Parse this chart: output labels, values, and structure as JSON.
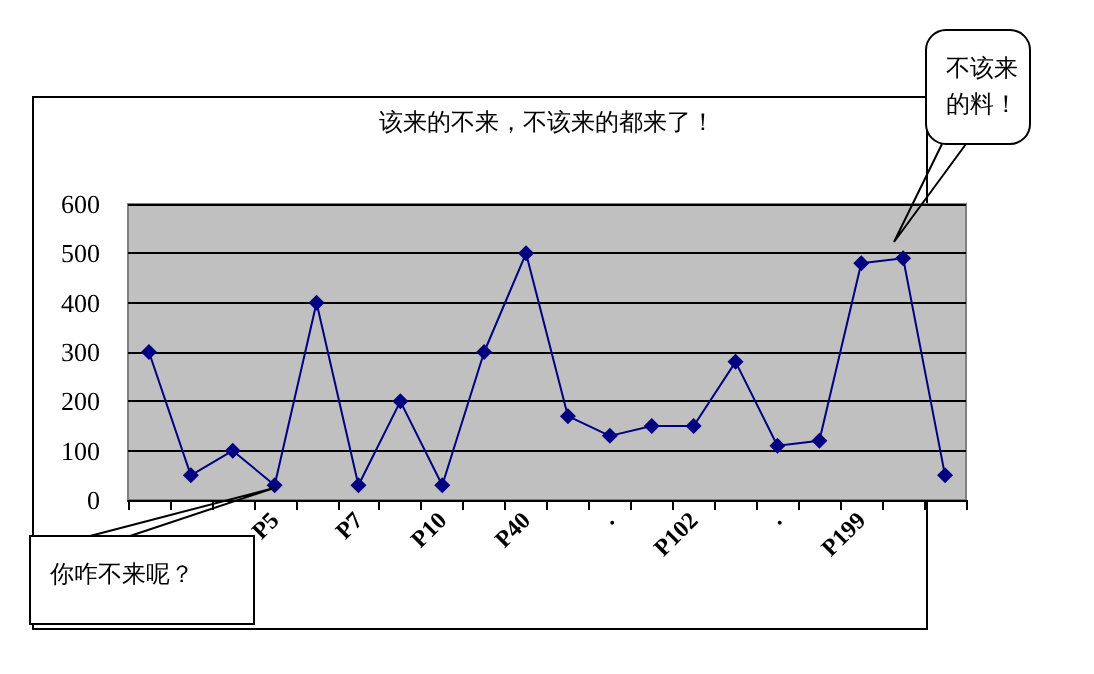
{
  "chart_data": {
    "type": "line",
    "title": "该来的不来，不该来的都来了！",
    "categories": [
      null,
      null,
      null,
      "P5",
      null,
      "P7",
      null,
      "P10",
      null,
      "P40",
      null,
      ".",
      null,
      "P102",
      null,
      ".",
      null,
      "P199",
      null,
      null
    ],
    "series": [
      {
        "color": "#000080",
        "values": [
          300,
          50,
          100,
          30,
          400,
          30,
          200,
          30,
          300,
          500,
          170,
          130,
          150,
          150,
          280,
          110,
          120,
          480,
          490,
          50
        ]
      }
    ],
    "ylim": [
      0,
      600
    ],
    "yticks": [
      0,
      100,
      200,
      300,
      400,
      500,
      600
    ],
    "grid": "y",
    "marker": "diamond",
    "line_style": "solid",
    "annotations": [
      "你咋不来呢？",
      "不该来的料！"
    ]
  }
}
